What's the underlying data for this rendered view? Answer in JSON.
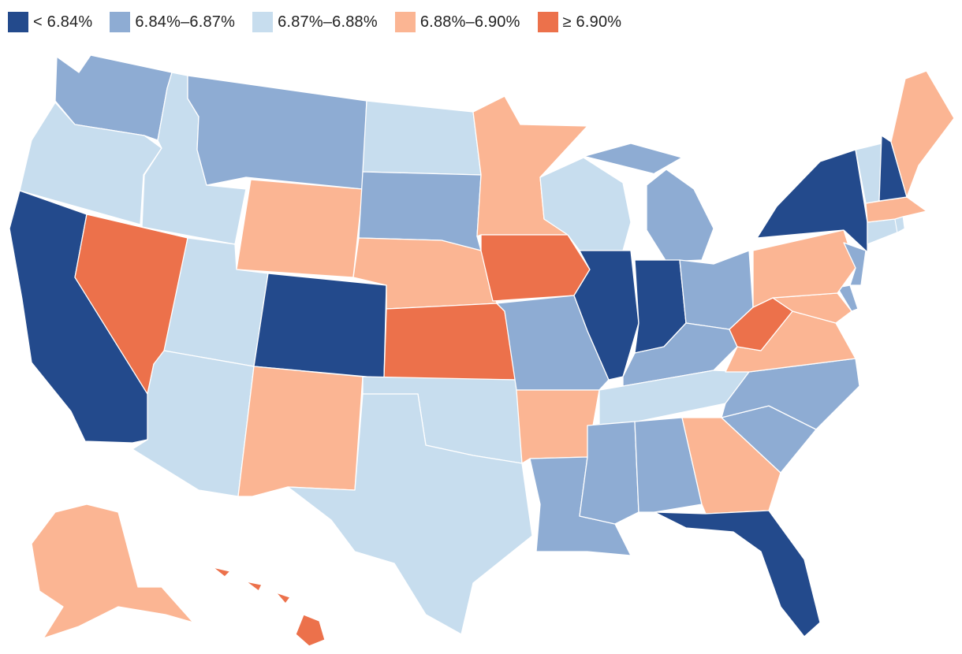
{
  "legend": [
    {
      "label": "< 6.84%",
      "color": "#234a8c"
    },
    {
      "label": "6.84%–6.87%",
      "color": "#8eacd3"
    },
    {
      "label": "6.87%–6.88%",
      "color": "#c7ddee"
    },
    {
      "label": "6.88%–6.90%",
      "color": "#fbb593"
    },
    {
      "label": "≥ 6.90%",
      "color": "#ec714b"
    }
  ],
  "states": {
    "WA": 1,
    "OR": 2,
    "CA": 0,
    "ID": 2,
    "NV": 4,
    "MT": 1,
    "WY": 3,
    "UT": 2,
    "AZ": 2,
    "CO": 0,
    "NM": 3,
    "ND": 2,
    "SD": 1,
    "NE": 3,
    "KS": 4,
    "OK": 2,
    "TX": 2,
    "MN": 3,
    "IA": 4,
    "MO": 1,
    "AR": 3,
    "LA": 1,
    "WI": 2,
    "IL": 0,
    "MI": 1,
    "IN": 0,
    "OH": 1,
    "KY": 1,
    "TN": 2,
    "MS": 1,
    "AL": 1,
    "GA": 3,
    "FL": 0,
    "SC": 1,
    "NC": 1,
    "VA": 3,
    "WV": 4,
    "MD": 3,
    "DE": 1,
    "PA": 3,
    "NJ": 1,
    "NY": 0,
    "CT": 2,
    "RI": 2,
    "MA": 3,
    "VT": 2,
    "NH": 0,
    "ME": 3,
    "AK": 3,
    "HI": 4
  }
}
